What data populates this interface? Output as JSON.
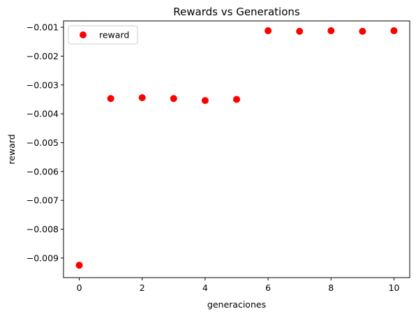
{
  "chart_data": {
    "type": "scatter",
    "title": "Rewards vs Generations",
    "xlabel": "generaciones",
    "ylabel": "reward",
    "xlim": [
      -0.5,
      10.5
    ],
    "ylim": [
      -0.00968,
      -0.00078
    ],
    "xticks": [
      0,
      2,
      4,
      6,
      8,
      10
    ],
    "xtick_labels": [
      "0",
      "2",
      "4",
      "6",
      "8",
      "10"
    ],
    "yticks": [
      -0.009,
      -0.008,
      -0.007,
      -0.006,
      -0.005,
      -0.004,
      -0.003,
      -0.002,
      -0.001
    ],
    "ytick_labels": [
      "−0.009",
      "−0.008",
      "−0.007",
      "−0.006",
      "−0.005",
      "−0.004",
      "−0.003",
      "−0.002",
      "−0.001"
    ],
    "grid": false,
    "legend_position": "top-left",
    "series": [
      {
        "name": "reward",
        "color": "#ff0000",
        "x": [
          0,
          1,
          2,
          3,
          4,
          5,
          6,
          7,
          8,
          9,
          10
        ],
        "y": [
          -0.00925,
          -0.00347,
          -0.00344,
          -0.00347,
          -0.00354,
          -0.0035,
          -0.00112,
          -0.00114,
          -0.00112,
          -0.00114,
          -0.00112
        ]
      }
    ]
  }
}
